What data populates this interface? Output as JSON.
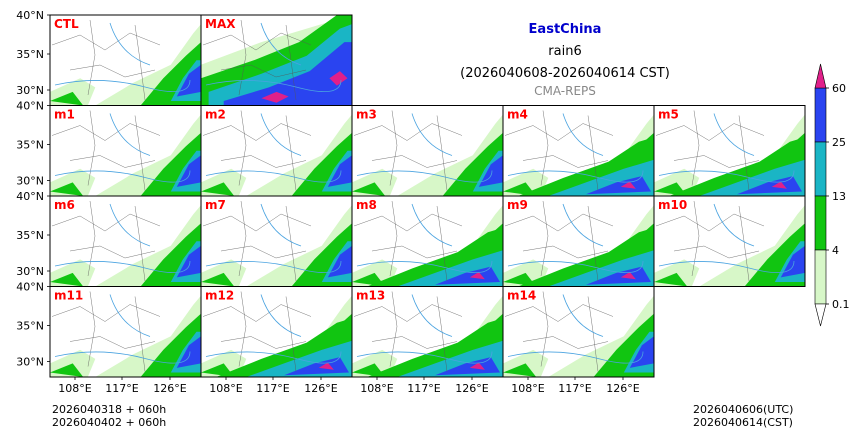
{
  "header": {
    "region": "EastChina",
    "variable": "rain6",
    "period": "(2026040608-2026040614 CST)",
    "model": "CMA-REPS"
  },
  "map": {
    "lat_labels": [
      "40°N",
      "35°N",
      "30°N"
    ],
    "lon_labels": [
      "108°E",
      "117°E",
      "126°E"
    ],
    "panels": [
      {
        "label": "CTL",
        "row": 0,
        "col": 0,
        "intensity": 1
      },
      {
        "label": "MAX",
        "row": 0,
        "col": 1,
        "intensity": 3
      },
      {
        "label": "m1",
        "row": 1,
        "col": 0,
        "intensity": 1
      },
      {
        "label": "m2",
        "row": 1,
        "col": 1,
        "intensity": 1
      },
      {
        "label": "m3",
        "row": 1,
        "col": 2,
        "intensity": 1
      },
      {
        "label": "m4",
        "row": 1,
        "col": 3,
        "intensity": 2
      },
      {
        "label": "m5",
        "row": 1,
        "col": 4,
        "intensity": 2
      },
      {
        "label": "m6",
        "row": 2,
        "col": 0,
        "intensity": 1
      },
      {
        "label": "m7",
        "row": 2,
        "col": 1,
        "intensity": 1
      },
      {
        "label": "m8",
        "row": 2,
        "col": 2,
        "intensity": 2
      },
      {
        "label": "m9",
        "row": 2,
        "col": 3,
        "intensity": 2
      },
      {
        "label": "m10",
        "row": 2,
        "col": 4,
        "intensity": 1
      },
      {
        "label": "m11",
        "row": 3,
        "col": 0,
        "intensity": 1
      },
      {
        "label": "m12",
        "row": 3,
        "col": 1,
        "intensity": 2
      },
      {
        "label": "m13",
        "row": 3,
        "col": 2,
        "intensity": 2
      },
      {
        "label": "m14",
        "row": 3,
        "col": 3,
        "intensity": 1
      }
    ]
  },
  "colorbar": {
    "levels": [
      "0.1",
      "4",
      "13",
      "25",
      "60"
    ],
    "colors": [
      "#d7f7c8",
      "#11c511",
      "#1ab5c5",
      "#2a44f0"
    ],
    "under_color": "#ffffff",
    "over_color": "#e0208a"
  },
  "footer": {
    "init_time_1": "2026040318  +  060h",
    "init_time_2": "2026040402  +  060h",
    "valid_utc": "2026040606(UTC)",
    "valid_cst": "2026040614(CST)"
  },
  "colors": {
    "label": "#ff0000",
    "title": "#0000cc",
    "river": "#4aa3e0"
  }
}
